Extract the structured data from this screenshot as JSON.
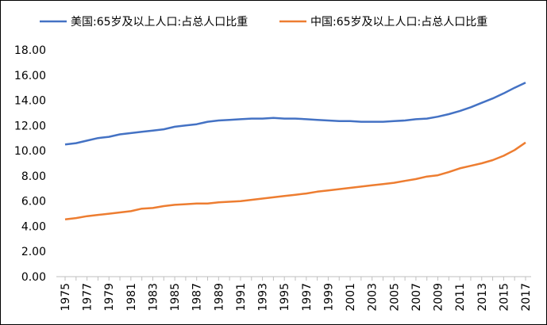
{
  "chart_data": {
    "type": "line",
    "categories": [
      "1975",
      "1976",
      "1977",
      "1978",
      "1979",
      "1980",
      "1981",
      "1982",
      "1983",
      "1984",
      "1985",
      "1986",
      "1987",
      "1988",
      "1989",
      "1990",
      "1991",
      "1992",
      "1993",
      "1994",
      "1995",
      "1996",
      "1997",
      "1998",
      "1999",
      "2000",
      "2001",
      "2002",
      "2003",
      "2004",
      "2005",
      "2006",
      "2007",
      "2008",
      "2009",
      "2010",
      "2011",
      "2012",
      "2013",
      "2014",
      "2015",
      "2016",
      "2017"
    ],
    "x_tick_labels": [
      "1975",
      "1977",
      "1979",
      "1981",
      "1983",
      "1985",
      "1987",
      "1989",
      "1991",
      "1993",
      "1995",
      "1997",
      "1999",
      "2001",
      "2003",
      "2005",
      "2007",
      "2009",
      "2011",
      "2013",
      "2015",
      "2017"
    ],
    "y_tick_labels": [
      "0.00",
      "2.00",
      "4.00",
      "6.00",
      "8.00",
      "10.00",
      "12.00",
      "14.00",
      "16.00",
      "18.00"
    ],
    "ylim": [
      0,
      18
    ],
    "grid": false,
    "legend_position": "top",
    "series": [
      {
        "name": "美国:65岁及以上人口:占总人口比重",
        "color": "#4472C4",
        "values": [
          10.5,
          10.6,
          10.8,
          11.0,
          11.1,
          11.3,
          11.4,
          11.5,
          11.6,
          11.7,
          11.9,
          12.0,
          12.1,
          12.3,
          12.4,
          12.45,
          12.5,
          12.55,
          12.55,
          12.6,
          12.55,
          12.55,
          12.5,
          12.45,
          12.4,
          12.35,
          12.35,
          12.3,
          12.3,
          12.3,
          12.35,
          12.4,
          12.5,
          12.55,
          12.7,
          12.9,
          13.15,
          13.45,
          13.8,
          14.15,
          14.55,
          15.0,
          15.4
        ]
      },
      {
        "name": "中国:65岁及以上人口:占总人口比重",
        "color": "#ED7D31",
        "values": [
          4.55,
          4.65,
          4.8,
          4.9,
          5.0,
          5.1,
          5.2,
          5.4,
          5.45,
          5.6,
          5.7,
          5.75,
          5.8,
          5.8,
          5.9,
          5.95,
          6.0,
          6.1,
          6.2,
          6.3,
          6.4,
          6.5,
          6.6,
          6.75,
          6.85,
          6.95,
          7.05,
          7.15,
          7.25,
          7.35,
          7.45,
          7.6,
          7.75,
          7.95,
          8.05,
          8.3,
          8.6,
          8.8,
          9.0,
          9.25,
          9.6,
          10.05,
          10.65
        ]
      }
    ]
  }
}
